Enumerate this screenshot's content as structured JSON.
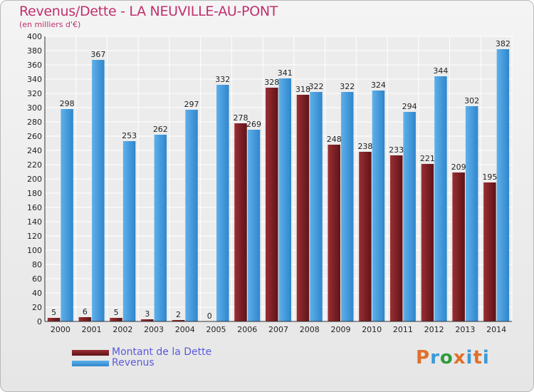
{
  "chart_data": {
    "type": "bar",
    "title": "Revenus/Dette - LA NEUVILLE-AU-PONT",
    "subtitle": "(en milliers d'€)",
    "categories": [
      "2000",
      "2001",
      "2002",
      "2003",
      "2004",
      "2005",
      "2006",
      "2007",
      "2008",
      "2009",
      "2010",
      "2011",
      "2012",
      "2013",
      "2014"
    ],
    "series": [
      {
        "name": "Montant de la Dette",
        "color": "#7a1f24",
        "values": [
          5,
          6,
          5,
          3,
          2,
          0,
          278,
          328,
          318,
          248,
          238,
          233,
          221,
          209,
          195
        ]
      },
      {
        "name": "Revenus",
        "color": "#3f9ae0",
        "values": [
          298,
          367,
          253,
          262,
          297,
          332,
          269,
          341,
          322,
          322,
          324,
          294,
          344,
          302,
          382
        ]
      }
    ],
    "ylim": [
      0,
      400
    ],
    "ytick_step": 20,
    "grid": true,
    "legend_position": "bottom-left"
  },
  "logo": {
    "text": "Proxiti",
    "colors": [
      "#e0702a",
      "#3a9ad9",
      "#2f9b3f",
      "#e0702a",
      "#3a9ad9",
      "#e0702a",
      "#3a9ad9"
    ]
  }
}
